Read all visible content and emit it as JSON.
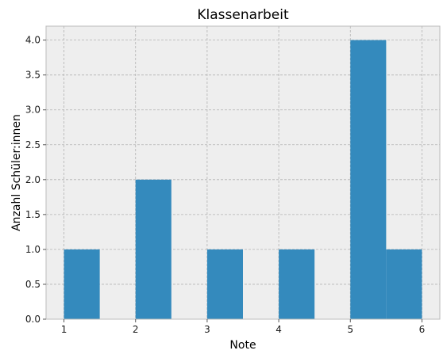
{
  "chart_data": {
    "type": "bar",
    "title": "Klassenarbeit",
    "xlabel": "Note",
    "ylabel": "Anzahl Schüler:innen",
    "bins": [
      {
        "start": 1.0,
        "end": 1.5,
        "count": 1
      },
      {
        "start": 1.5,
        "end": 2.0,
        "count": 0
      },
      {
        "start": 2.0,
        "end": 2.5,
        "count": 2
      },
      {
        "start": 2.5,
        "end": 3.0,
        "count": 0
      },
      {
        "start": 3.0,
        "end": 3.5,
        "count": 1
      },
      {
        "start": 3.5,
        "end": 4.0,
        "count": 0
      },
      {
        "start": 4.0,
        "end": 4.5,
        "count": 1
      },
      {
        "start": 4.5,
        "end": 5.0,
        "count": 0
      },
      {
        "start": 5.0,
        "end": 5.5,
        "count": 4
      },
      {
        "start": 5.5,
        "end": 6.0,
        "count": 1
      }
    ],
    "xlim": [
      0.75,
      6.25
    ],
    "ylim": [
      0,
      4.2
    ],
    "xticks": [
      "1",
      "2",
      "3",
      "4",
      "5",
      "6"
    ],
    "yticks": [
      "0.0",
      "0.5",
      "1.0",
      "1.5",
      "2.0",
      "2.5",
      "3.0",
      "3.5",
      "4.0"
    ],
    "grid": true,
    "colors": {
      "bar": "#348ABD",
      "plot_background": "#EEEEEE",
      "grid": "#b2b2b2",
      "frame": "#bcbcbc"
    }
  }
}
